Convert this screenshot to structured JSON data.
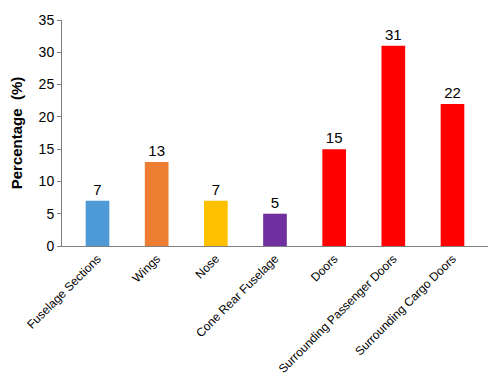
{
  "chart_data": {
    "type": "bar",
    "categories": [
      "Fuselage Sections",
      "Wings",
      "Nose",
      "Cone Rear Fuselage",
      "Doors",
      "Surrounding Passenger Doors",
      "Surrounding Cargo Doors"
    ],
    "values": [
      7,
      13,
      7,
      5,
      15,
      31,
      22
    ],
    "colors": [
      "#4e9ad6",
      "#ed7d31",
      "#ffc000",
      "#7030a0",
      "#ff0000",
      "#ff0000",
      "#ff0000"
    ],
    "ylabel": "Percentage  (%)",
    "ylim": [
      0,
      35
    ],
    "yticks": [
      0,
      5,
      10,
      15,
      20,
      25,
      30,
      35
    ],
    "grid": false,
    "data_labels": true
  }
}
